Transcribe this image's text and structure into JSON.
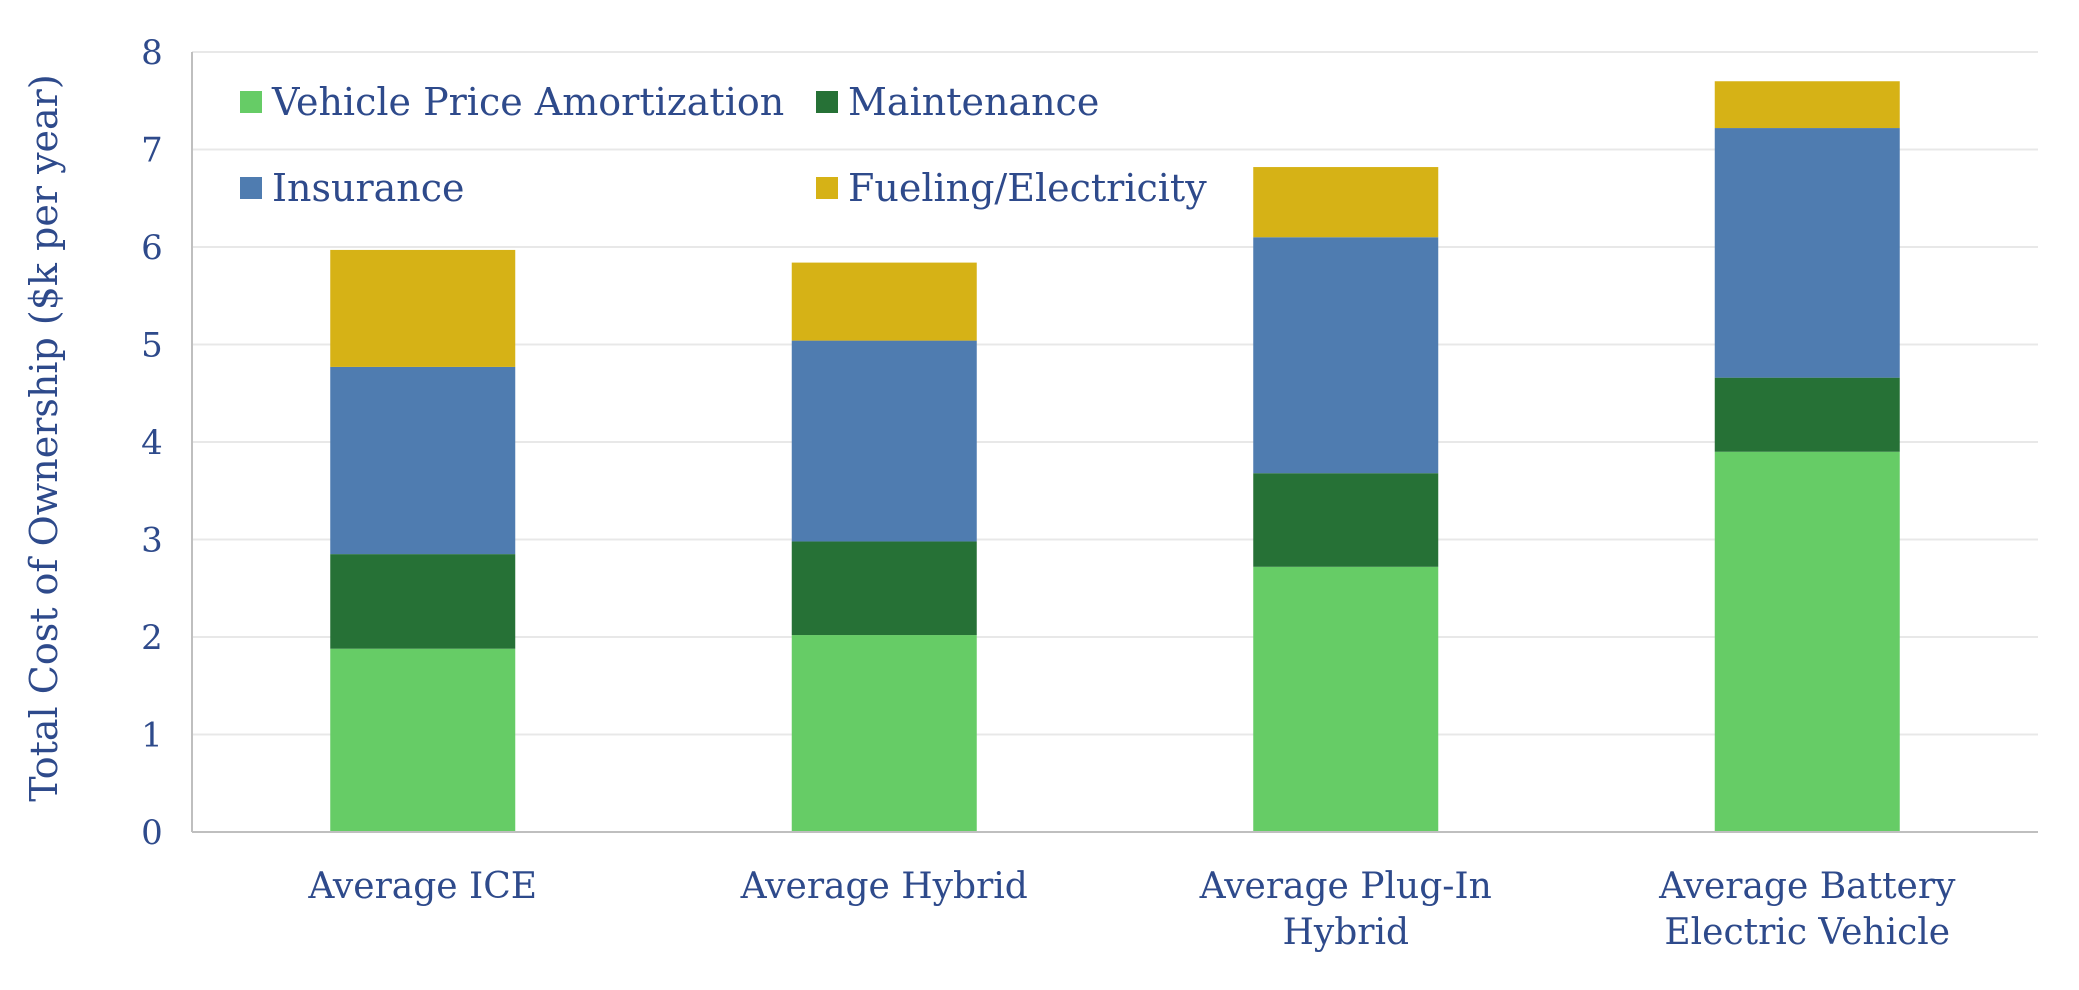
{
  "chart_data": {
    "type": "bar",
    "stacked": true,
    "title": "",
    "xlabel": "",
    "ylabel": "Total Cost of Ownership ($k per year)",
    "ylim": [
      0,
      8
    ],
    "yticks": [
      "0",
      "1",
      "2",
      "3",
      "4",
      "5",
      "6",
      "7",
      "8"
    ],
    "grid": true,
    "legend_position": "top-left",
    "categories": [
      [
        "Average ICE"
      ],
      [
        "Average Hybrid"
      ],
      [
        "Average Plug-In",
        "Hybrid"
      ],
      [
        "Average Battery",
        "Electric Vehicle"
      ]
    ],
    "series": [
      {
        "name": "Vehicle Price Amortization",
        "color": "#66CC66",
        "values": [
          1.88,
          2.02,
          2.72,
          3.9
        ]
      },
      {
        "name": "Maintenance",
        "color": "#267136",
        "values": [
          0.97,
          0.96,
          0.96,
          0.76
        ]
      },
      {
        "name": "Insurance",
        "color": "#4F7CB0",
        "values": [
          1.92,
          2.06,
          2.42,
          2.56
        ]
      },
      {
        "name": "Fueling/Electricity",
        "color": "#D6B216",
        "values": [
          1.2,
          0.8,
          0.72,
          0.48
        ]
      }
    ],
    "colors": {
      "text": "#2E4A8B",
      "axis": "#BFBFBF",
      "grid": "#E8E8E8"
    }
  }
}
